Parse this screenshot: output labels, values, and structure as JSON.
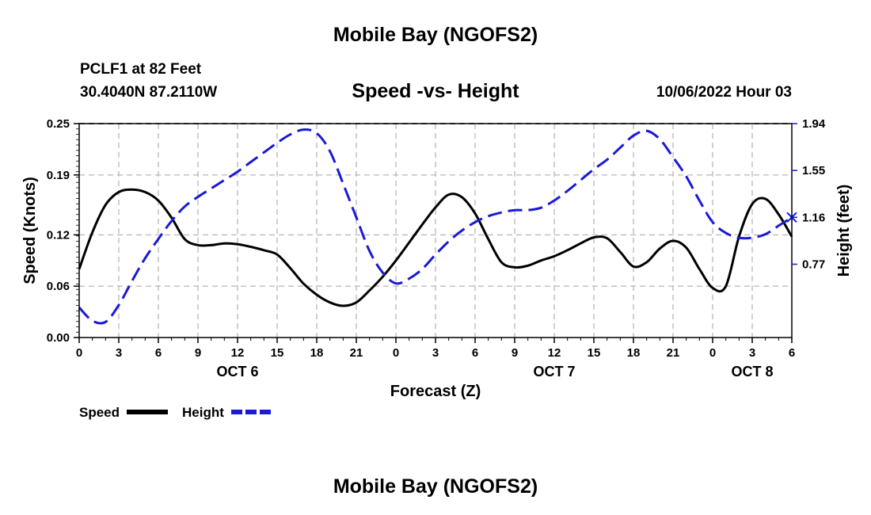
{
  "header": {
    "title": "Mobile Bay (NGOFS2)",
    "station": "PCLF1 at 82 Feet",
    "coords": "30.4040N  87.2110W",
    "subtitle": "Speed -vs- Height",
    "timestamp": "10/06/2022 Hour 03"
  },
  "footer": {
    "title": "Mobile Bay (NGOFS2)"
  },
  "chart_data": {
    "type": "line",
    "title": "Speed -vs- Height",
    "xlabel": "Forecast (Z)",
    "ylabel": "Speed (Knots)",
    "y2label": "Height (feet)",
    "x_range": [
      0,
      54
    ],
    "ylim": [
      0,
      0.25
    ],
    "y2lim": [
      0.16,
      1.94
    ],
    "grid": true,
    "x_ticks": [
      0,
      3,
      6,
      9,
      12,
      15,
      18,
      21,
      24,
      27,
      30,
      33,
      36,
      39,
      42,
      45,
      48,
      51,
      54
    ],
    "x_tick_labels": [
      "0",
      "3",
      "6",
      "9",
      "12",
      "15",
      "18",
      "21",
      "0",
      "3",
      "6",
      "9",
      "12",
      "15",
      "18",
      "21",
      "0",
      "3",
      "6"
    ],
    "day_labels": [
      {
        "x": 12,
        "label": "OCT 6"
      },
      {
        "x": 36,
        "label": "OCT 7"
      },
      {
        "x": 51,
        "label": "OCT 8"
      }
    ],
    "y_ticks": [
      0.0,
      0.06,
      0.12,
      0.19,
      0.25
    ],
    "y_tick_labels": [
      "0.00",
      "0.06",
      "0.12",
      "0.19",
      "0.25"
    ],
    "y2_ticks": [
      0.77,
      1.16,
      1.55,
      1.94
    ],
    "y2_tick_labels": [
      "0.77",
      "1.16",
      "1.55",
      "1.94"
    ],
    "series": [
      {
        "name": "Speed",
        "axis": "left",
        "color": "#000000",
        "dash": "solid",
        "x": [
          0,
          1,
          2,
          3,
          4,
          5,
          6,
          7,
          8,
          9,
          10,
          11,
          12,
          13,
          14,
          15,
          16,
          17,
          18,
          19,
          20,
          21,
          22,
          23,
          24,
          25,
          26,
          27,
          28,
          29,
          30,
          31,
          32,
          33,
          34,
          35,
          36,
          37,
          38,
          39,
          40,
          41,
          42,
          43,
          44,
          45,
          46,
          47,
          48,
          49,
          50,
          51,
          52,
          53,
          54
        ],
        "values": [
          0.08,
          0.123,
          0.155,
          0.17,
          0.173,
          0.17,
          0.16,
          0.14,
          0.115,
          0.108,
          0.108,
          0.11,
          0.109,
          0.106,
          0.102,
          0.097,
          0.081,
          0.063,
          0.05,
          0.041,
          0.037,
          0.041,
          0.055,
          0.071,
          0.09,
          0.111,
          0.132,
          0.152,
          0.167,
          0.164,
          0.145,
          0.115,
          0.088,
          0.082,
          0.084,
          0.09,
          0.095,
          0.102,
          0.11,
          0.117,
          0.116,
          0.1,
          0.083,
          0.088,
          0.104,
          0.113,
          0.105,
          0.08,
          0.058,
          0.06,
          0.118,
          0.156,
          0.162,
          0.144,
          0.118
        ]
      },
      {
        "name": "Height",
        "axis": "right",
        "color": "#1a1ad6",
        "dash": "dashed",
        "x": [
          0,
          1,
          2,
          3,
          4,
          5,
          6,
          7,
          8,
          9,
          10,
          11,
          12,
          13,
          14,
          15,
          16,
          17,
          18,
          19,
          20,
          21,
          22,
          23,
          24,
          25,
          26,
          27,
          28,
          29,
          30,
          31,
          32,
          33,
          34,
          35,
          36,
          37,
          38,
          39,
          40,
          41,
          42,
          43,
          44,
          45,
          46,
          47,
          48,
          49,
          50,
          51,
          52,
          53,
          54
        ],
        "values": [
          0.41,
          0.3,
          0.29,
          0.43,
          0.63,
          0.82,
          0.98,
          1.13,
          1.25,
          1.33,
          1.4,
          1.47,
          1.54,
          1.62,
          1.7,
          1.78,
          1.85,
          1.89,
          1.86,
          1.71,
          1.44,
          1.16,
          0.88,
          0.7,
          0.61,
          0.65,
          0.73,
          0.85,
          0.96,
          1.05,
          1.12,
          1.17,
          1.2,
          1.22,
          1.22,
          1.24,
          1.3,
          1.38,
          1.47,
          1.56,
          1.64,
          1.74,
          1.84,
          1.88,
          1.81,
          1.66,
          1.5,
          1.3,
          1.12,
          1.03,
          0.99,
          0.99,
          1.02,
          1.09,
          1.16
        ]
      }
    ],
    "legend": {
      "position": "bottom-left",
      "entries": [
        {
          "label": "Speed",
          "color": "#000000",
          "dash": "solid"
        },
        {
          "label": "Height",
          "color": "#1a1ad6",
          "dash": "dashed"
        }
      ]
    }
  }
}
